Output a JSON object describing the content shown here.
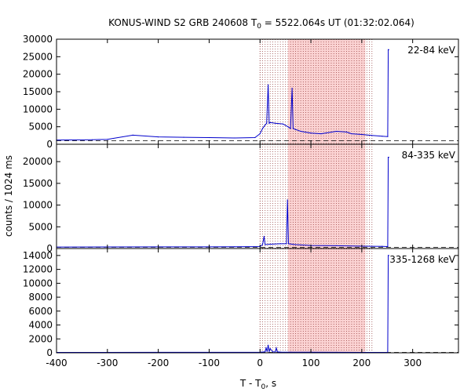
{
  "chart_data": {
    "type": "line",
    "title_prefix": "KONUS-WIND S2 GRB 240608 T",
    "title_sub": "0",
    "title_suffix": " = 5522.064s UT (01:32:02.064)",
    "xlabel_prefix": "T - T",
    "xlabel_sub": "0",
    "xlabel_suffix": ", s",
    "ylabel": "counts / 1024 ms",
    "xlim": [
      -400,
      390
    ],
    "xticks": [
      -400,
      -300,
      -200,
      -100,
      0,
      100,
      200,
      300
    ],
    "xtick_labels": [
      "-400",
      "-300",
      "-200",
      "-100",
      "0",
      "100",
      "200",
      "300"
    ],
    "interval_lines_x": [
      0,
      220
    ],
    "interval_line_count": 44,
    "shaded_region_x": [
      55,
      207
    ],
    "colors": {
      "data": "#0000cc",
      "shade": "#fbd3d3",
      "interval_lines": "#7a1010",
      "axes": "#000000"
    },
    "panels": [
      {
        "label": "22-84 keV",
        "ylim": [
          0,
          30000
        ],
        "yticks": [
          0,
          5000,
          10000,
          15000,
          20000,
          25000,
          30000
        ],
        "ytick_labels": [
          "0",
          "5000",
          "10000",
          "15000",
          "20000",
          "25000",
          "30000"
        ],
        "background_level": 1000,
        "x": [
          -400,
          -330,
          -300,
          -250,
          -200,
          -150,
          -100,
          -50,
          -10,
          0,
          5,
          10,
          13,
          16,
          18,
          20,
          30,
          45,
          55,
          60,
          63,
          65,
          70,
          80,
          100,
          120,
          150,
          170,
          180,
          200,
          220,
          240,
          251,
          252,
          253
        ],
        "counts": [
          1200,
          1300,
          1400,
          2600,
          2100,
          2000,
          1900,
          1800,
          1900,
          3000,
          4500,
          5500,
          6000,
          17000,
          6000,
          6200,
          6000,
          5800,
          5000,
          4500,
          16000,
          4500,
          4200,
          3700,
          3200,
          3000,
          3700,
          3500,
          3000,
          2800,
          2500,
          2300,
          2200,
          27000,
          27000
        ]
      },
      {
        "label": "84-335 keV",
        "ylim": [
          0,
          24000
        ],
        "yticks": [
          0,
          5000,
          10000,
          15000,
          20000
        ],
        "ytick_labels": [
          "0",
          "5000",
          "10000",
          "15000",
          "20000"
        ],
        "background_level": 300,
        "x": [
          -400,
          -200,
          -50,
          0,
          5,
          8,
          10,
          20,
          40,
          52,
          54,
          56,
          70,
          100,
          150,
          200,
          240,
          251,
          252,
          253
        ],
        "counts": [
          350,
          380,
          400,
          450,
          900,
          2800,
          900,
          1000,
          1100,
          1100,
          11200,
          1100,
          900,
          700,
          650,
          550,
          500,
          450,
          21000,
          21000
        ]
      },
      {
        "label": "335-1268 keV",
        "ylim": [
          0,
          15000
        ],
        "yticks": [
          0,
          2000,
          4000,
          6000,
          8000,
          10000,
          12000,
          14000
        ],
        "ytick_labels": [
          "0",
          "2000",
          "4000",
          "6000",
          "8000",
          "10000",
          "12000",
          "14000"
        ],
        "background_level": 50,
        "x": [
          -400,
          -200,
          0,
          10,
          12,
          14,
          16,
          18,
          20,
          25,
          30,
          32,
          34,
          36,
          40,
          60,
          100,
          150,
          200,
          251,
          252,
          253
        ],
        "counts": [
          60,
          70,
          80,
          150,
          700,
          200,
          1100,
          200,
          600,
          150,
          120,
          700,
          150,
          120,
          100,
          90,
          80,
          70,
          60,
          60,
          14000,
          14000
        ]
      }
    ]
  }
}
